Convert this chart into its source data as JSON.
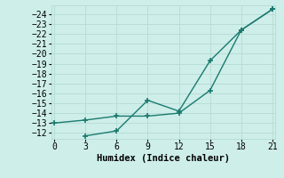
{
  "line1_x": [
    0,
    3,
    6,
    9,
    12,
    15,
    18,
    21
  ],
  "line1_y": [
    -13.0,
    -13.3,
    -13.7,
    -13.7,
    -14.0,
    -16.3,
    -22.4,
    -24.5
  ],
  "line2_x": [
    3,
    6,
    9,
    12,
    15,
    18,
    21
  ],
  "line2_y": [
    -11.7,
    -12.2,
    -15.3,
    -14.2,
    -19.3,
    -22.4,
    -24.5
  ],
  "line_color": "#1a7a6e",
  "bg_color": "#ceeee9",
  "grid_color": "#b8ddd8",
  "xlabel": "Humidex (Indice chaleur)",
  "xlim": [
    -0.3,
    21.3
  ],
  "ylim": [
    -24.9,
    -11.4
  ],
  "xticks": [
    0,
    3,
    6,
    9,
    12,
    15,
    18,
    21
  ],
  "yticks": [
    -12,
    -13,
    -14,
    -15,
    -16,
    -17,
    -18,
    -19,
    -20,
    -21,
    -22,
    -23,
    -24
  ],
  "marker": "+",
  "marker_size": 5,
  "marker_edge_width": 1.2,
  "line_width": 1.0,
  "xlabel_fontsize": 7.5,
  "tick_fontsize": 7
}
